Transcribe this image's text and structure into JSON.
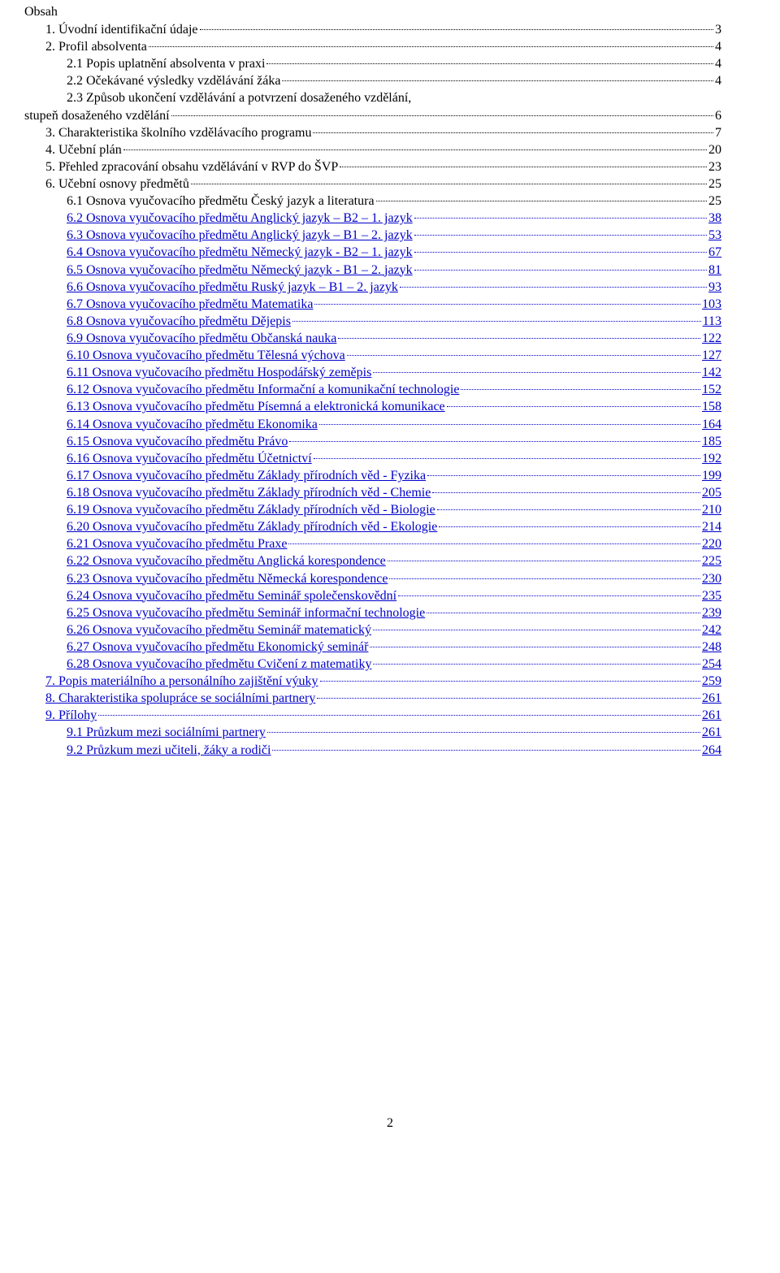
{
  "title": "Obsah",
  "page_number": "2",
  "colors": {
    "link": "#0000cc",
    "text": "#000000",
    "background": "#ffffff"
  },
  "typography": {
    "font_family": "Times New Roman",
    "base_fontsize_pt": 12
  },
  "toc": [
    {
      "indent": 1,
      "label": "1. Úvodní identifikační údaje",
      "page": "3",
      "link": false
    },
    {
      "indent": 1,
      "label": "2. Profil absolventa",
      "page": "4",
      "link": false
    },
    {
      "indent": 2,
      "label": "2.1 Popis uplatnění absolventa v praxi",
      "page": "4",
      "link": false
    },
    {
      "indent": 2,
      "label": "2.2 Očekávané výsledky vzdělávání žáka",
      "page": "4",
      "link": false
    },
    {
      "indent": 2,
      "label": "2.3 Způsob ukončení vzdělávání a potvrzení dosaženého vzdělání, stupeň dosaženého vzdělání",
      "page": "6",
      "link": false,
      "wrap": true
    },
    {
      "indent": 1,
      "label": "3. Charakteristika školního vzdělávacího programu",
      "page": "7",
      "link": false
    },
    {
      "indent": 1,
      "label": "4. Učební plán",
      "page": "20",
      "link": false
    },
    {
      "indent": 1,
      "label": "5. Přehled zpracování obsahu vzdělávání v RVP do ŠVP",
      "page": "23",
      "link": false
    },
    {
      "indent": 1,
      "label": "6. Učební osnovy předmětů",
      "page": "25",
      "link": false
    },
    {
      "indent": 2,
      "label": "6.1 Osnova vyučovacího předmětu Český jazyk a literatura",
      "page": "25",
      "link": false
    },
    {
      "indent": 2,
      "label": "6.2 Osnova vyučovacího předmětu Anglický jazyk – B2 – 1. jazyk",
      "page": "38",
      "link": true
    },
    {
      "indent": 2,
      "label": "6.3 Osnova vyučovacího předmětu Anglický jazyk – B1 – 2. jazyk",
      "page": "53",
      "link": true
    },
    {
      "indent": 2,
      "label": "6.4 Osnova vyučovacího předmětu Německý jazyk - B2 – 1. jazyk",
      "page": "67",
      "link": true
    },
    {
      "indent": 2,
      "label": "6.5 Osnova vyučovacího předmětu Německý jazyk - B1 – 2. jazyk",
      "page": "81",
      "link": true
    },
    {
      "indent": 2,
      "label": "6.6 Osnova vyučovacího předmětu Ruský jazyk – B1 – 2. jazyk",
      "page": "93",
      "link": true
    },
    {
      "indent": 2,
      "label": "6.7 Osnova vyučovacího předmětu Matematika",
      "page": "103",
      "link": true
    },
    {
      "indent": 2,
      "label": "6.8 Osnova vyučovacího předmětu Dějepis",
      "page": "113",
      "link": true
    },
    {
      "indent": 2,
      "label": "6.9 Osnova vyučovacího předmětu Občanská nauka",
      "page": "122",
      "link": true
    },
    {
      "indent": 2,
      "label": "6.10 Osnova vyučovacího předmětu Tělesná výchova",
      "page": "127",
      "link": true
    },
    {
      "indent": 2,
      "label": "6.11 Osnova vyučovacího předmětu Hospodářský zeměpis",
      "page": "142",
      "link": true
    },
    {
      "indent": 2,
      "label": "6.12 Osnova vyučovacího předmětu Informační a komunikační technologie",
      "page": "152",
      "link": true
    },
    {
      "indent": 2,
      "label": "6.13 Osnova vyučovacího předmětu Písemná a elektronická komunikace",
      "page": "158",
      "link": true
    },
    {
      "indent": 2,
      "label": "6.14 Osnova vyučovacího předmětu Ekonomika",
      "page": "164",
      "link": true
    },
    {
      "indent": 2,
      "label": "6.15 Osnova vyučovacího předmětu Právo",
      "page": "185",
      "link": true
    },
    {
      "indent": 2,
      "label": "6.16 Osnova vyučovacího předmětu Účetnictví",
      "page": "192",
      "link": true
    },
    {
      "indent": 2,
      "label": "6.17 Osnova vyučovacího předmětu Základy přírodních věd - Fyzika",
      "page": "199",
      "link": true
    },
    {
      "indent": 2,
      "label": "6.18 Osnova vyučovacího předmětu Základy přírodních věd - Chemie",
      "page": "205",
      "link": true
    },
    {
      "indent": 2,
      "label": "6.19 Osnova vyučovacího předmětu Základy přírodních věd - Biologie",
      "page": "210",
      "link": true
    },
    {
      "indent": 2,
      "label": "6.20 Osnova vyučovacího předmětu Základy přírodních věd - Ekologie",
      "page": "214",
      "link": true
    },
    {
      "indent": 2,
      "label": "6.21 Osnova vyučovacího předmětu Praxe",
      "page": "220",
      "link": true
    },
    {
      "indent": 2,
      "label": "6.22 Osnova vyučovacího předmětu Anglická korespondence",
      "page": "225",
      "link": true
    },
    {
      "indent": 2,
      "label": "6.23 Osnova vyučovacího předmětu Německá korespondence",
      "page": "230",
      "link": true
    },
    {
      "indent": 2,
      "label": "6.24 Osnova vyučovacího předmětu Seminář společenskovědní",
      "page": "235",
      "link": true
    },
    {
      "indent": 2,
      "label": "6.25 Osnova vyučovacího předmětu Seminář informační technologie",
      "page": "239",
      "link": true
    },
    {
      "indent": 2,
      "label": "6.26 Osnova vyučovacího předmětu Seminář matematický",
      "page": "242",
      "link": true
    },
    {
      "indent": 2,
      "label": "6.27 Osnova vyučovacího předmětu Ekonomický seminář",
      "page": "248",
      "link": true
    },
    {
      "indent": 2,
      "label": "6.28 Osnova vyučovacího předmětu Cvičení z matematiky",
      "page": "254",
      "link": true
    },
    {
      "indent": 1,
      "label": "7. Popis materiálního a personálního zajištění výuky",
      "page": "259",
      "link": true
    },
    {
      "indent": 1,
      "label": "8. Charakteristika spolupráce se sociálními partnery",
      "page": "261",
      "link": true
    },
    {
      "indent": 1,
      "label": "9. Přílohy",
      "page": "261",
      "link": true
    },
    {
      "indent": 2,
      "label": "9.1 Průzkum mezi sociálními partnery",
      "page": "261",
      "link": true
    },
    {
      "indent": 2,
      "label": "9.2 Průzkum mezi učiteli, žáky a rodiči",
      "page": "264",
      "link": true
    }
  ]
}
